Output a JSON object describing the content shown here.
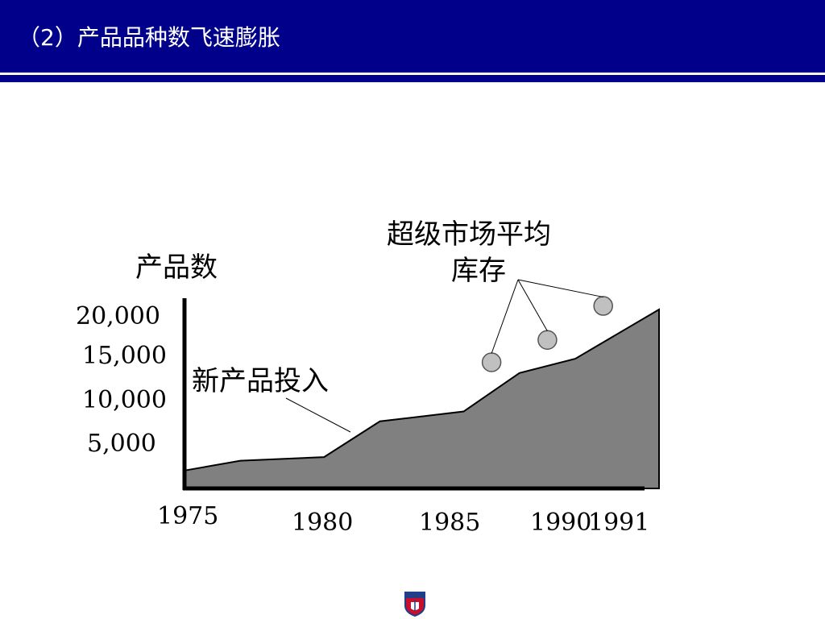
{
  "slide": {
    "title": "（2）产品品种数飞速膨胀"
  },
  "colors": {
    "header_background": "#00008b",
    "area_fill": "#808080",
    "marker_fill": "#c0c0c0"
  },
  "chart_data": {
    "type": "area",
    "ylabel": "产品数",
    "y_tick_labels": [
      "20,000",
      "15,000",
      "10,000",
      "5,000"
    ],
    "y_ticks": [
      20000,
      15000,
      10000,
      5000
    ],
    "x_tick_labels": [
      "1975",
      "1980",
      "1985",
      "1990",
      "1991"
    ],
    "x_ticks": [
      1975,
      1980,
      1985,
      1990,
      1991
    ],
    "ylim": [
      0,
      20000
    ],
    "xlim": [
      1975,
      1992
    ],
    "grid": false,
    "series": [
      {
        "name": "新产品投入",
        "x": [
          1975,
          1977,
          1980,
          1982,
          1985,
          1987,
          1989,
          1992
        ],
        "y": [
          2000,
          3100,
          3500,
          7500,
          8600,
          12900,
          14500,
          20000
        ]
      },
      {
        "name": "超级市场平均库存",
        "type": "scatter",
        "x": [
          1986,
          1988,
          1990
        ],
        "y": [
          14100,
          16600,
          20400
        ]
      }
    ],
    "annotations": [
      {
        "text": "新产品投入",
        "target_series": 0
      },
      {
        "text_lines": [
          "超级市场平均",
          "库存"
        ],
        "target_series": 1
      }
    ]
  },
  "footer": {
    "emblem_icon": "school-crest-icon"
  }
}
